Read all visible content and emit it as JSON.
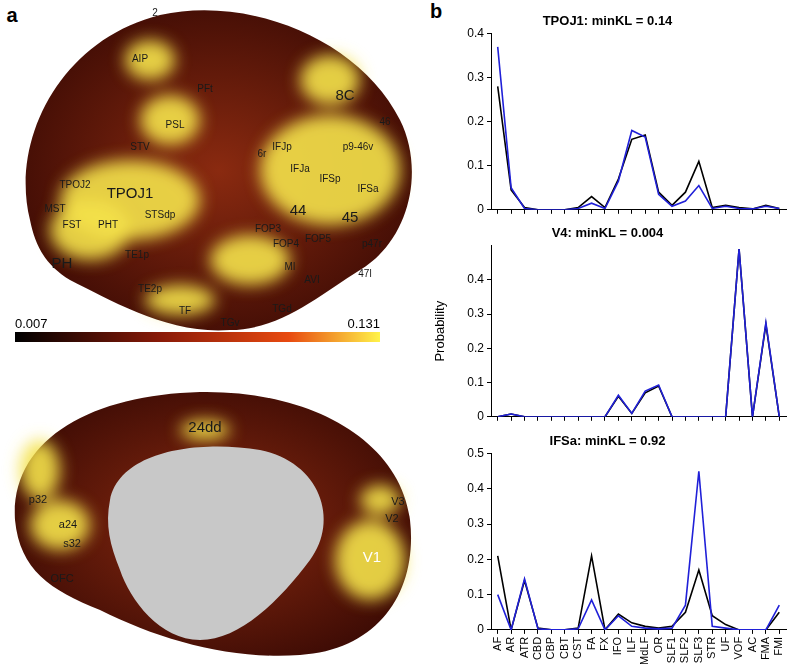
{
  "panel_labels": [
    "a",
    "b"
  ],
  "surface_map": {
    "colorbar": {
      "range": [
        0.007,
        0.131
      ]
    },
    "lateral_labels": [
      "2",
      "AIP",
      "PFt",
      "8C",
      "46",
      "PSL",
      "STV",
      "IFJp",
      "IFJa",
      "p9-46v",
      "IFSp",
      "IFSa",
      "6r",
      "44",
      "45",
      "TPOJ1",
      "MST",
      "TPOJ2",
      "FST",
      "PHT",
      "STSdp",
      "FOP4",
      "FOP5",
      "FOP3",
      "MI",
      "AVI",
      "p47r",
      "47l",
      "TE1p",
      "PH",
      "TE2p",
      "TF",
      "TGv",
      "TGd"
    ],
    "medial_labels": [
      "24dd",
      "a24",
      "p32",
      "s32",
      "OFC",
      "V1",
      "V2",
      "V3"
    ]
  },
  "chart_data": [
    {
      "type": "line",
      "title": "TPOJ1: minKL = 0.14",
      "categories": [
        "AF",
        "AR",
        "ATR",
        "CBD",
        "CBP",
        "CBT",
        "CST",
        "FA",
        "FX",
        "IFO",
        "ILF",
        "MdLF",
        "OR",
        "SLF1",
        "SLF2",
        "SLF3",
        "STR",
        "UF",
        "VOF",
        "AC",
        "FMA",
        "FMI"
      ],
      "series": [
        {
          "color": "#000000",
          "values": [
            0.28,
            0.045,
            0.005,
            0,
            0,
            0,
            0.005,
            0.03,
            0.005,
            0.07,
            0.16,
            0.17,
            0.04,
            0.01,
            0.04,
            0.11,
            0.005,
            0.01,
            0.005,
            0.002,
            0.01,
            0.003
          ]
        },
        {
          "color": "#2020d8",
          "values": [
            0.37,
            0.05,
            0.003,
            0,
            0,
            0,
            0.003,
            0.015,
            0.003,
            0.065,
            0.18,
            0.165,
            0.035,
            0.008,
            0.02,
            0.055,
            0.003,
            0.008,
            0.003,
            0.002,
            0.008,
            0.003
          ]
        }
      ],
      "ylim": [
        0,
        0.4
      ],
      "yticks": [
        0,
        0.1,
        0.2,
        0.3,
        0.4
      ],
      "grid": false,
      "tick_labels": "y"
    },
    {
      "type": "line",
      "title": "V4: minKL = 0.004",
      "y_label": "Probability",
      "categories": [
        "AF",
        "AR",
        "ATR",
        "CBD",
        "CBP",
        "CBT",
        "CST",
        "FA",
        "FX",
        "IFO",
        "ILF",
        "MdLF",
        "OR",
        "SLF1",
        "SLF2",
        "SLF3",
        "STR",
        "UF",
        "VOF",
        "AC",
        "FMA",
        "FMI"
      ],
      "series": [
        {
          "color": "#000000",
          "values": [
            0,
            0.008,
            0,
            0,
            0,
            0,
            0,
            0,
            0,
            0.06,
            0.01,
            0.07,
            0.09,
            0,
            0,
            0,
            0,
            0,
            0.49,
            0,
            0.27,
            0
          ]
        },
        {
          "color": "#2020d8",
          "values": [
            0,
            0.008,
            0,
            0,
            0,
            0,
            0,
            0,
            0,
            0.063,
            0.01,
            0.075,
            0.093,
            0,
            0,
            0,
            0,
            0,
            0.49,
            0,
            0.275,
            0
          ]
        }
      ],
      "ylim": [
        0,
        0.5
      ],
      "yticks": [
        0,
        0.1,
        0.2,
        0.3,
        0.4
      ],
      "grid": false,
      "tick_labels": "y"
    },
    {
      "type": "line",
      "title": "IFSa: minKL = 0.92",
      "categories": [
        "AF",
        "AR",
        "ATR",
        "CBD",
        "CBP",
        "CBT",
        "CST",
        "FA",
        "FX",
        "IFO",
        "ILF",
        "MdLF",
        "OR",
        "SLF1",
        "SLF2",
        "SLF3",
        "STR",
        "UF",
        "VOF",
        "AC",
        "FMA",
        "FMI"
      ],
      "series": [
        {
          "color": "#000000",
          "values": [
            0.21,
            0,
            0.14,
            0.005,
            0,
            0,
            0.005,
            0.21,
            0,
            0.045,
            0.02,
            0.01,
            0.005,
            0.01,
            0.05,
            0.17,
            0.04,
            0.015,
            0,
            0,
            0,
            0.05
          ]
        },
        {
          "color": "#2020d8",
          "values": [
            0.1,
            0,
            0.145,
            0.003,
            0,
            0,
            0.003,
            0.085,
            0,
            0.04,
            0.01,
            0.005,
            0.003,
            0.005,
            0.07,
            0.45,
            0.01,
            0.005,
            0,
            0,
            0,
            0.07
          ]
        }
      ],
      "ylim": [
        0,
        0.5
      ],
      "yticks": [
        0,
        0.1,
        0.2,
        0.3,
        0.4,
        0.5
      ],
      "grid": false,
      "tick_labels": true
    }
  ]
}
